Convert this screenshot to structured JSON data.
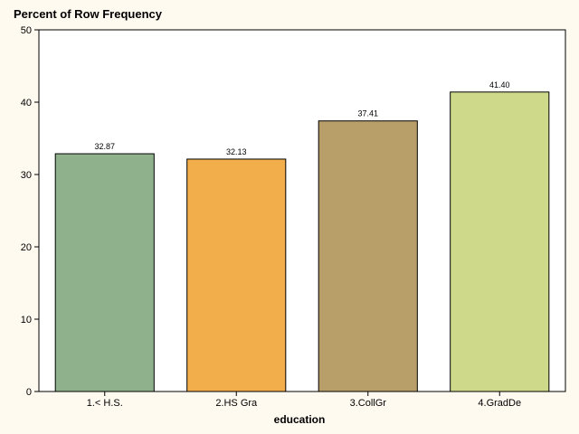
{
  "chart_data": {
    "type": "bar",
    "title": "Percent of Row Frequency",
    "xlabel": "education",
    "ylabel": "",
    "categories": [
      "1.< H.S.",
      "2.HS Gra",
      "3.CollGr",
      "4.GradDe"
    ],
    "values": [
      32.87,
      32.13,
      37.41,
      41.4
    ],
    "value_labels": [
      "32.87",
      "32.13",
      "37.41",
      "41.40"
    ],
    "colors": [
      "#8fb28c",
      "#f2ae4a",
      "#b89e69",
      "#cfd98a"
    ],
    "ylim": [
      0,
      50
    ],
    "yticks": [
      0,
      10,
      20,
      30,
      40,
      50
    ],
    "grid": false,
    "legend": "none"
  }
}
